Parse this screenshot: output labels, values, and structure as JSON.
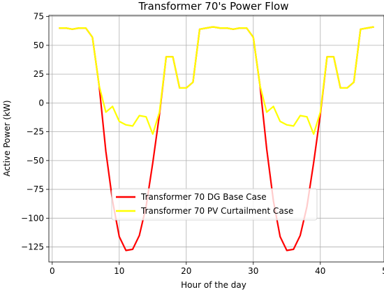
{
  "chart_data": {
    "type": "line",
    "title": "Transformer 70's Power Flow",
    "xlabel": "Hour of the day",
    "ylabel": "Active Power (kW)",
    "xlim": [
      -0.5,
      49.5
    ],
    "ylim": [
      -138,
      76
    ],
    "xticks": [
      0,
      10,
      20,
      30,
      40,
      50
    ],
    "yticks": [
      -125,
      -100,
      -75,
      -50,
      -25,
      0,
      25,
      50,
      75
    ],
    "ytick_labels": [
      "−125",
      "−100",
      "−75",
      "−50",
      "−25",
      "0",
      "25",
      "50",
      "75"
    ],
    "grid": true,
    "legend_position": "lower-center",
    "x": [
      1,
      2,
      3,
      4,
      5,
      6,
      7,
      8,
      9,
      10,
      11,
      12,
      13,
      14,
      15,
      16,
      17,
      18,
      19,
      20,
      21,
      22,
      23,
      24,
      25,
      26,
      27,
      28,
      29,
      30,
      31,
      32,
      33,
      34,
      35,
      36,
      37,
      38,
      39,
      40,
      41,
      42,
      43,
      44,
      45,
      46,
      47,
      48
    ],
    "series": [
      {
        "name": "Transformer 70 DG Base Case",
        "color": "#ff0000",
        "values": [
          65,
          65,
          64,
          65,
          65,
          57,
          15,
          -42,
          -85,
          -116,
          -128,
          -127,
          -115,
          -90,
          -52,
          -10,
          40,
          40,
          13,
          13,
          18,
          64,
          65,
          66,
          65,
          65,
          64,
          65,
          65,
          57,
          15,
          -40,
          -85,
          -116,
          -128,
          -127,
          -115,
          -90,
          -52,
          -10,
          40,
          40,
          13,
          13,
          18,
          64,
          65,
          66
        ]
      },
      {
        "name": "Transformer 70 PV Curtailment Case",
        "color": "#ffff00",
        "values": [
          65,
          65,
          64,
          65,
          65,
          57,
          15,
          -8,
          -3,
          -16,
          -19,
          -20,
          -11,
          -12,
          -27,
          -8,
          40,
          40,
          13,
          13,
          18,
          64,
          65,
          66,
          65,
          65,
          64,
          65,
          65,
          57,
          15,
          -8,
          -3,
          -16,
          -19,
          -20,
          -11,
          -12,
          -27,
          -8,
          40,
          40,
          13,
          13,
          18,
          64,
          65,
          66
        ]
      }
    ]
  }
}
